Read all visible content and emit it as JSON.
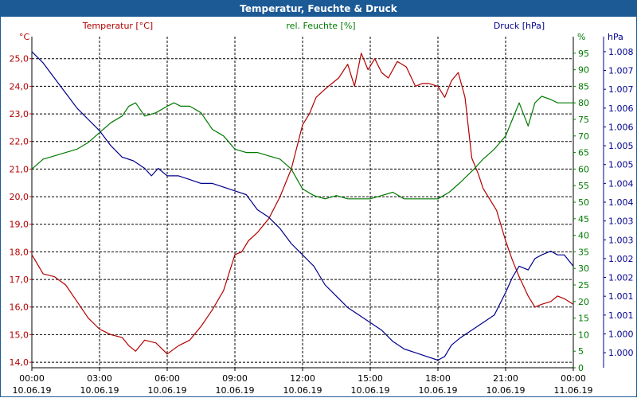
{
  "window": {
    "title": "Temperatur, Feuchte & Druck"
  },
  "colors": {
    "temperature": "#b30000",
    "humidity": "#007a00",
    "pressure": "#00008b",
    "axis_text": "#000000",
    "grid": "#000000",
    "title_bg": "#1c5a96"
  },
  "chart_data": {
    "type": "line",
    "title": "Temperatur, Feuchte & Druck",
    "x_ticks": [
      {
        "time": "00:00",
        "date": "10.06.19"
      },
      {
        "time": "03:00",
        "date": "10.06.19"
      },
      {
        "time": "06:00",
        "date": "10.06.19"
      },
      {
        "time": "09:00",
        "date": "10.06.19"
      },
      {
        "time": "12:00",
        "date": "10.06.19"
      },
      {
        "time": "15:00",
        "date": "10.06.19"
      },
      {
        "time": "18:00",
        "date": "10.06.19"
      },
      {
        "time": "21:00",
        "date": "10.06.19"
      },
      {
        "time": "00:00",
        "date": "11.06.19"
      }
    ],
    "x_range_hours": [
      0,
      24
    ],
    "axes": {
      "temperature": {
        "unit": "°C",
        "label": "Temperatur [°C]",
        "range": [
          13.8,
          25.8
        ],
        "ticks": [
          "14,0",
          "15,0",
          "16,0",
          "17,0",
          "18,0",
          "19,0",
          "20,0",
          "21,0",
          "22,0",
          "23,0",
          "24,0",
          "25,0"
        ]
      },
      "humidity": {
        "unit": "%",
        "label": "rel. Feuchte [%]",
        "range": [
          0,
          100
        ],
        "ticks": [
          "0",
          "5",
          "10",
          "15",
          "20",
          "25",
          "30",
          "35",
          "40",
          "45",
          "50",
          "55",
          "60",
          "65",
          "70",
          "75",
          "80",
          "85",
          "90",
          "95"
        ]
      },
      "pressure": {
        "unit": "hPa",
        "label": "Druck [hPa]",
        "range": [
          999.6,
          1008.4
        ],
        "ticks": [
          "1.000",
          "1.000",
          "1.001",
          "1.001",
          "1.002",
          "1.002",
          "1.003",
          "1.003",
          "1.004",
          "1.004",
          "1.005",
          "1.005",
          "1.006",
          "1.006",
          "1.007",
          "1.007",
          "1.008"
        ]
      }
    },
    "series": [
      {
        "name": "Temperatur [°C]",
        "axis": "temperature",
        "points": [
          [
            0,
            17.9
          ],
          [
            0.5,
            17.2
          ],
          [
            1,
            17.1
          ],
          [
            1.5,
            16.8
          ],
          [
            2,
            16.2
          ],
          [
            2.5,
            15.6
          ],
          [
            3,
            15.2
          ],
          [
            3.5,
            15.0
          ],
          [
            4,
            14.9
          ],
          [
            4.3,
            14.6
          ],
          [
            4.6,
            14.4
          ],
          [
            5,
            14.8
          ],
          [
            5.5,
            14.7
          ],
          [
            6,
            14.3
          ],
          [
            6.5,
            14.6
          ],
          [
            7,
            14.8
          ],
          [
            7.5,
            15.3
          ],
          [
            8,
            15.9
          ],
          [
            8.5,
            16.6
          ],
          [
            9,
            17.9
          ],
          [
            9.3,
            18.0
          ],
          [
            9.6,
            18.4
          ],
          [
            10,
            18.7
          ],
          [
            10.5,
            19.2
          ],
          [
            11,
            20.0
          ],
          [
            11.5,
            21.0
          ],
          [
            12,
            22.6
          ],
          [
            12.3,
            23.0
          ],
          [
            12.6,
            23.6
          ],
          [
            13,
            23.9
          ],
          [
            13.3,
            24.1
          ],
          [
            13.6,
            24.3
          ],
          [
            14,
            24.8
          ],
          [
            14.3,
            24.0
          ],
          [
            14.6,
            25.2
          ],
          [
            14.9,
            24.6
          ],
          [
            15.2,
            25.0
          ],
          [
            15.5,
            24.5
          ],
          [
            15.8,
            24.3
          ],
          [
            16.2,
            24.9
          ],
          [
            16.6,
            24.7
          ],
          [
            17,
            24.0
          ],
          [
            17.3,
            24.1
          ],
          [
            17.6,
            24.1
          ],
          [
            18,
            24.0
          ],
          [
            18.3,
            23.6
          ],
          [
            18.6,
            24.2
          ],
          [
            18.9,
            24.5
          ],
          [
            19.2,
            23.6
          ],
          [
            19.5,
            21.4
          ],
          [
            19.8,
            20.8
          ],
          [
            20,
            20.3
          ],
          [
            20.3,
            19.9
          ],
          [
            20.6,
            19.5
          ],
          [
            21,
            18.4
          ],
          [
            21.3,
            17.7
          ],
          [
            21.6,
            17.1
          ],
          [
            22,
            16.4
          ],
          [
            22.3,
            16.0
          ],
          [
            22.6,
            16.1
          ],
          [
            23,
            16.2
          ],
          [
            23.3,
            16.4
          ],
          [
            23.6,
            16.3
          ],
          [
            24,
            16.1
          ]
        ]
      },
      {
        "name": "rel. Feuchte [%]",
        "axis": "humidity",
        "points": [
          [
            0,
            60
          ],
          [
            0.5,
            63
          ],
          [
            1,
            64
          ],
          [
            1.5,
            65
          ],
          [
            2,
            66
          ],
          [
            2.5,
            68
          ],
          [
            3,
            71
          ],
          [
            3.5,
            74
          ],
          [
            4,
            76
          ],
          [
            4.3,
            79
          ],
          [
            4.6,
            80
          ],
          [
            5,
            76
          ],
          [
            5.5,
            77
          ],
          [
            6,
            79
          ],
          [
            6.3,
            80
          ],
          [
            6.6,
            79
          ],
          [
            7,
            79
          ],
          [
            7.5,
            77
          ],
          [
            8,
            72
          ],
          [
            8.5,
            70
          ],
          [
            9,
            66
          ],
          [
            9.5,
            65
          ],
          [
            10,
            65
          ],
          [
            10.5,
            64
          ],
          [
            11,
            63
          ],
          [
            11.5,
            60
          ],
          [
            12,
            54
          ],
          [
            12.5,
            52
          ],
          [
            13,
            51
          ],
          [
            13.5,
            52
          ],
          [
            14,
            51
          ],
          [
            14.5,
            51
          ],
          [
            15,
            51
          ],
          [
            15.5,
            52
          ],
          [
            16,
            53
          ],
          [
            16.5,
            51
          ],
          [
            17,
            51
          ],
          [
            17.5,
            51
          ],
          [
            18,
            51
          ],
          [
            18.5,
            53
          ],
          [
            19,
            56
          ],
          [
            19.3,
            58
          ],
          [
            19.6,
            60
          ],
          [
            20,
            63
          ],
          [
            20.5,
            66
          ],
          [
            21,
            70
          ],
          [
            21.3,
            75
          ],
          [
            21.6,
            80
          ],
          [
            22,
            73
          ],
          [
            22.3,
            80
          ],
          [
            22.6,
            82
          ],
          [
            23,
            81
          ],
          [
            23.3,
            80
          ],
          [
            23.6,
            80
          ],
          [
            24,
            80
          ]
        ]
      },
      {
        "name": "Druck [hPa]",
        "axis": "pressure",
        "points": [
          [
            0,
            1008.0
          ],
          [
            0.5,
            1007.7
          ],
          [
            1,
            1007.3
          ],
          [
            1.5,
            1006.9
          ],
          [
            2,
            1006.5
          ],
          [
            2.5,
            1006.2
          ],
          [
            3,
            1005.9
          ],
          [
            3.5,
            1005.5
          ],
          [
            4,
            1005.2
          ],
          [
            4.5,
            1005.1
          ],
          [
            5,
            1004.9
          ],
          [
            5.3,
            1004.7
          ],
          [
            5.6,
            1004.9
          ],
          [
            6,
            1004.7
          ],
          [
            6.5,
            1004.7
          ],
          [
            7,
            1004.6
          ],
          [
            7.5,
            1004.5
          ],
          [
            8,
            1004.5
          ],
          [
            8.5,
            1004.4
          ],
          [
            9,
            1004.3
          ],
          [
            9.5,
            1004.2
          ],
          [
            10,
            1003.8
          ],
          [
            10.5,
            1003.6
          ],
          [
            11,
            1003.3
          ],
          [
            11.5,
            1002.9
          ],
          [
            12,
            1002.6
          ],
          [
            12.5,
            1002.3
          ],
          [
            13,
            1001.8
          ],
          [
            13.5,
            1001.5
          ],
          [
            14,
            1001.2
          ],
          [
            14.5,
            1001.0
          ],
          [
            15,
            1000.8
          ],
          [
            15.5,
            1000.6
          ],
          [
            16,
            1000.3
          ],
          [
            16.5,
            1000.1
          ],
          [
            17,
            1000.0
          ],
          [
            17.5,
            999.9
          ],
          [
            18,
            999.8
          ],
          [
            18.3,
            999.9
          ],
          [
            18.6,
            1000.2
          ],
          [
            19,
            1000.4
          ],
          [
            19.5,
            1000.6
          ],
          [
            20,
            1000.8
          ],
          [
            20.5,
            1001.0
          ],
          [
            21,
            1001.6
          ],
          [
            21.3,
            1002.0
          ],
          [
            21.6,
            1002.3
          ],
          [
            22,
            1002.2
          ],
          [
            22.3,
            1002.5
          ],
          [
            22.6,
            1002.6
          ],
          [
            23,
            1002.7
          ],
          [
            23.3,
            1002.6
          ],
          [
            23.6,
            1002.6
          ],
          [
            24,
            1002.3
          ]
        ]
      }
    ]
  }
}
